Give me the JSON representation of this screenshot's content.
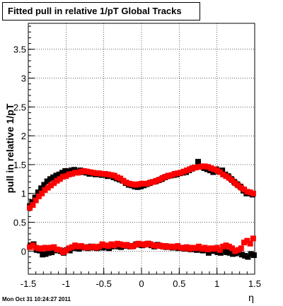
{
  "title": "Fitted pull in relative 1/pT  Global Tracks",
  "footer_date": "Mon Oct 31 10:24:27 2011",
  "chart_data": {
    "type": "scatter",
    "title": "Fitted pull in relative 1/pT  Global Tracks",
    "xlabel": "η",
    "ylabel": "pull in relative 1/pT",
    "xlim": [
      -1.5,
      1.5
    ],
    "ylim": [
      -0.4,
      3.95
    ],
    "x_ticks": [
      "-1.5",
      "-1",
      "-0.5",
      "0",
      "0.5",
      "1",
      "1.5"
    ],
    "x_tick_values": [
      -1.5,
      -1,
      -0.5,
      0,
      0.5,
      1,
      1.5
    ],
    "y_ticks": [
      "0",
      "0.5",
      "1",
      "1.5",
      "2",
      "2.5",
      "3",
      "3.5"
    ],
    "y_tick_values": [
      0,
      0.5,
      1,
      1.5,
      2,
      2.5,
      3,
      3.5
    ],
    "grid": true,
    "series": [
      {
        "color": "#000000",
        "marker": "square",
        "points": [
          [
            -1.48,
            0.78
          ],
          [
            -1.45,
            0.85
          ],
          [
            -1.41,
            0.93
          ],
          [
            -1.37,
            1.02
          ],
          [
            -1.33,
            1.09
          ],
          [
            -1.29,
            1.15
          ],
          [
            -1.25,
            1.21
          ],
          [
            -1.21,
            1.25
          ],
          [
            -1.17,
            1.28
          ],
          [
            -1.13,
            1.31
          ],
          [
            -1.09,
            1.33
          ],
          [
            -1.05,
            1.36
          ],
          [
            -1.01,
            1.39
          ],
          [
            -0.97,
            1.38
          ],
          [
            -0.93,
            1.4
          ],
          [
            -0.89,
            1.41
          ],
          [
            -0.85,
            1.38
          ],
          [
            -0.81,
            1.4
          ],
          [
            -0.77,
            1.37
          ],
          [
            -0.73,
            1.36
          ],
          [
            -0.69,
            1.34
          ],
          [
            -0.65,
            1.35
          ],
          [
            -0.61,
            1.33
          ],
          [
            -0.57,
            1.34
          ],
          [
            -0.53,
            1.32
          ],
          [
            -0.49,
            1.33
          ],
          [
            -0.45,
            1.3
          ],
          [
            -0.41,
            1.31
          ],
          [
            -0.37,
            1.28
          ],
          [
            -0.33,
            1.26
          ],
          [
            -0.29,
            1.24
          ],
          [
            -0.25,
            1.22
          ],
          [
            -0.21,
            1.18
          ],
          [
            -0.17,
            1.15
          ],
          [
            -0.13,
            1.14
          ],
          [
            -0.09,
            1.12
          ],
          [
            -0.05,
            1.11
          ],
          [
            -0.01,
            1.12
          ],
          [
            0.03,
            1.14
          ],
          [
            0.07,
            1.16
          ],
          [
            0.11,
            1.18
          ],
          [
            0.15,
            1.2
          ],
          [
            0.19,
            1.21
          ],
          [
            0.23,
            1.23
          ],
          [
            0.27,
            1.25
          ],
          [
            0.31,
            1.28
          ],
          [
            0.35,
            1.3
          ],
          [
            0.39,
            1.31
          ],
          [
            0.43,
            1.32
          ],
          [
            0.47,
            1.33
          ],
          [
            0.51,
            1.35
          ],
          [
            0.55,
            1.36
          ],
          [
            0.59,
            1.37
          ],
          [
            0.63,
            1.4
          ],
          [
            0.67,
            1.43
          ],
          [
            0.71,
            1.45
          ],
          [
            0.75,
            1.55
          ],
          [
            0.79,
            1.47
          ],
          [
            0.83,
            1.44
          ],
          [
            0.87,
            1.42
          ],
          [
            0.91,
            1.4
          ],
          [
            0.95,
            1.37
          ],
          [
            0.99,
            1.42
          ],
          [
            1.03,
            1.38
          ],
          [
            1.07,
            1.4
          ],
          [
            1.11,
            1.33
          ],
          [
            1.15,
            1.3
          ],
          [
            1.19,
            1.25
          ],
          [
            1.23,
            1.2
          ],
          [
            1.27,
            1.16
          ],
          [
            1.31,
            1.12
          ],
          [
            1.35,
            1.05
          ],
          [
            1.39,
            1.0
          ],
          [
            1.43,
            1.0
          ],
          [
            1.47,
            0.98
          ],
          [
            -1.47,
            0.1
          ],
          [
            -1.43,
            0.12
          ],
          [
            -1.39,
            0.02
          ],
          [
            -1.35,
            0.01
          ],
          [
            -1.31,
            -0.06
          ],
          [
            -1.27,
            -0.05
          ],
          [
            -1.23,
            -0.03
          ],
          [
            -1.19,
            -0.02
          ],
          [
            -1.15,
            0.01
          ],
          [
            -1.11,
            0.02
          ],
          [
            -1.07,
            0.0
          ],
          [
            -1.03,
            -0.03
          ],
          [
            -0.99,
            0.02
          ],
          [
            -0.95,
            0.01
          ],
          [
            -0.91,
            0.05
          ],
          [
            -0.87,
            0.06
          ],
          [
            -0.83,
            0.04
          ],
          [
            -0.79,
            0.06
          ],
          [
            -0.75,
            0.07
          ],
          [
            -0.71,
            0.05
          ],
          [
            -0.67,
            0.08
          ],
          [
            -0.63,
            0.06
          ],
          [
            -0.59,
            0.05
          ],
          [
            -0.55,
            0.07
          ],
          [
            -0.51,
            0.06
          ],
          [
            -0.47,
            0.08
          ],
          [
            -0.43,
            0.05
          ],
          [
            -0.39,
            0.08
          ],
          [
            -0.35,
            0.1
          ],
          [
            -0.31,
            0.08
          ],
          [
            -0.27,
            0.07
          ],
          [
            -0.23,
            0.09
          ],
          [
            -0.19,
            0.1
          ],
          [
            -0.15,
            0.08
          ],
          [
            -0.11,
            0.09
          ],
          [
            -0.07,
            0.12
          ],
          [
            -0.03,
            0.11
          ],
          [
            0.01,
            0.1
          ],
          [
            0.05,
            0.12
          ],
          [
            0.09,
            0.13
          ],
          [
            0.13,
            0.1
          ],
          [
            0.17,
            0.08
          ],
          [
            0.21,
            0.11
          ],
          [
            0.25,
            0.09
          ],
          [
            0.29,
            0.08
          ],
          [
            0.33,
            0.07
          ],
          [
            0.37,
            0.08
          ],
          [
            0.41,
            0.06
          ],
          [
            0.45,
            0.07
          ],
          [
            0.49,
            0.05
          ],
          [
            0.53,
            0.06
          ],
          [
            0.57,
            0.04
          ],
          [
            0.61,
            0.05
          ],
          [
            0.65,
            0.03
          ],
          [
            0.69,
            0.04
          ],
          [
            0.73,
            0.02
          ],
          [
            0.77,
            0.03
          ],
          [
            0.81,
            0.01
          ],
          [
            0.85,
            0.02
          ],
          [
            0.89,
            -0.03
          ],
          [
            0.93,
            0.01
          ],
          [
            0.97,
            0.0
          ],
          [
            1.01,
            -0.02
          ],
          [
            1.05,
            -0.03
          ],
          [
            1.09,
            0.0
          ],
          [
            1.13,
            -0.02
          ],
          [
            1.17,
            -0.03
          ],
          [
            1.21,
            -0.05
          ],
          [
            1.25,
            -0.04
          ],
          [
            1.29,
            -0.02
          ],
          [
            1.33,
            -0.06
          ],
          [
            1.37,
            -0.08
          ],
          [
            1.41,
            -0.1
          ],
          [
            1.45,
            -0.05
          ],
          [
            1.49,
            -0.07
          ]
        ]
      },
      {
        "color": "#ff0000",
        "marker": "square",
        "points": [
          [
            -1.48,
            0.75
          ],
          [
            -1.44,
            0.8
          ],
          [
            -1.4,
            0.88
          ],
          [
            -1.36,
            0.95
          ],
          [
            -1.32,
            1.0
          ],
          [
            -1.28,
            1.06
          ],
          [
            -1.24,
            1.1
          ],
          [
            -1.2,
            1.14
          ],
          [
            -1.16,
            1.18
          ],
          [
            -1.12,
            1.22
          ],
          [
            -1.08,
            1.25
          ],
          [
            -1.04,
            1.29
          ],
          [
            -1.0,
            1.3
          ],
          [
            -0.96,
            1.33
          ],
          [
            -0.92,
            1.34
          ],
          [
            -0.88,
            1.36
          ],
          [
            -0.84,
            1.36
          ],
          [
            -0.8,
            1.38
          ],
          [
            -0.76,
            1.39
          ],
          [
            -0.72,
            1.38
          ],
          [
            -0.68,
            1.37
          ],
          [
            -0.64,
            1.36
          ],
          [
            -0.6,
            1.35
          ],
          [
            -0.56,
            1.35
          ],
          [
            -0.52,
            1.34
          ],
          [
            -0.48,
            1.34
          ],
          [
            -0.44,
            1.33
          ],
          [
            -0.4,
            1.32
          ],
          [
            -0.36,
            1.31
          ],
          [
            -0.32,
            1.28
          ],
          [
            -0.28,
            1.26
          ],
          [
            -0.24,
            1.22
          ],
          [
            -0.2,
            1.19
          ],
          [
            -0.16,
            1.17
          ],
          [
            -0.12,
            1.16
          ],
          [
            -0.08,
            1.15
          ],
          [
            -0.04,
            1.16
          ],
          [
            0.0,
            1.17
          ],
          [
            0.04,
            1.17
          ],
          [
            0.08,
            1.17
          ],
          [
            0.12,
            1.19
          ],
          [
            0.16,
            1.2
          ],
          [
            0.2,
            1.22
          ],
          [
            0.24,
            1.24
          ],
          [
            0.28,
            1.27
          ],
          [
            0.32,
            1.29
          ],
          [
            0.36,
            1.31
          ],
          [
            0.4,
            1.32
          ],
          [
            0.44,
            1.34
          ],
          [
            0.48,
            1.35
          ],
          [
            0.52,
            1.36
          ],
          [
            0.56,
            1.38
          ],
          [
            0.6,
            1.4
          ],
          [
            0.64,
            1.42
          ],
          [
            0.68,
            1.44
          ],
          [
            0.72,
            1.45
          ],
          [
            0.76,
            1.46
          ],
          [
            0.8,
            1.47
          ],
          [
            0.84,
            1.47
          ],
          [
            0.88,
            1.46
          ],
          [
            0.92,
            1.44
          ],
          [
            0.96,
            1.42
          ],
          [
            1.0,
            1.4
          ],
          [
            1.04,
            1.37
          ],
          [
            1.08,
            1.33
          ],
          [
            1.12,
            1.3
          ],
          [
            1.16,
            1.27
          ],
          [
            1.2,
            1.23
          ],
          [
            1.24,
            1.18
          ],
          [
            1.28,
            1.14
          ],
          [
            1.32,
            1.1
          ],
          [
            1.36,
            1.07
          ],
          [
            1.4,
            1.03
          ],
          [
            1.44,
            1.02
          ],
          [
            1.48,
            1.0
          ],
          [
            -1.48,
            0.07
          ],
          [
            -1.44,
            0.1
          ],
          [
            -1.4,
            0.06
          ],
          [
            -1.36,
            0.05
          ],
          [
            -1.32,
            0.04
          ],
          [
            -1.28,
            0.06
          ],
          [
            -1.24,
            0.05
          ],
          [
            -1.2,
            0.06
          ],
          [
            -1.16,
            0.07
          ],
          [
            -1.12,
            0.03
          ],
          [
            -1.08,
            0.02
          ],
          [
            -1.04,
            -0.02
          ],
          [
            -1.0,
            0.01
          ],
          [
            -0.96,
            0.05
          ],
          [
            -0.92,
            0.07
          ],
          [
            -0.88,
            0.1
          ],
          [
            -0.84,
            0.08
          ],
          [
            -0.8,
            0.09
          ],
          [
            -0.76,
            0.07
          ],
          [
            -0.72,
            0.06
          ],
          [
            -0.68,
            0.07
          ],
          [
            -0.64,
            0.08
          ],
          [
            -0.6,
            0.06
          ],
          [
            -0.56,
            0.08
          ],
          [
            -0.52,
            0.12
          ],
          [
            -0.48,
            0.1
          ],
          [
            -0.44,
            0.09
          ],
          [
            -0.4,
            0.12
          ],
          [
            -0.36,
            0.1
          ],
          [
            -0.32,
            0.13
          ],
          [
            -0.28,
            0.12
          ],
          [
            -0.24,
            0.1
          ],
          [
            -0.2,
            0.11
          ],
          [
            -0.16,
            0.09
          ],
          [
            -0.12,
            0.08
          ],
          [
            -0.08,
            0.11
          ],
          [
            -0.04,
            0.13
          ],
          [
            0.0,
            0.12
          ],
          [
            0.04,
            0.11
          ],
          [
            0.08,
            0.13
          ],
          [
            0.12,
            0.12
          ],
          [
            0.16,
            0.1
          ],
          [
            0.2,
            0.09
          ],
          [
            0.24,
            0.1
          ],
          [
            0.28,
            0.08
          ],
          [
            0.32,
            0.09
          ],
          [
            0.36,
            0.07
          ],
          [
            0.4,
            0.08
          ],
          [
            0.44,
            0.07
          ],
          [
            0.48,
            0.09
          ],
          [
            0.52,
            0.06
          ],
          [
            0.56,
            0.05
          ],
          [
            0.6,
            0.07
          ],
          [
            0.64,
            0.04
          ],
          [
            0.68,
            0.06
          ],
          [
            0.72,
            0.05
          ],
          [
            0.76,
            0.08
          ],
          [
            0.8,
            0.04
          ],
          [
            0.84,
            0.06
          ],
          [
            0.88,
            0.03
          ],
          [
            0.92,
            0.05
          ],
          [
            0.96,
            0.04
          ],
          [
            1.0,
            0.06
          ],
          [
            1.04,
            0.02
          ],
          [
            1.08,
            0.08
          ],
          [
            1.12,
            0.1
          ],
          [
            1.16,
            0.08
          ],
          [
            1.2,
            0.05
          ],
          [
            1.24,
            0.0
          ],
          [
            1.28,
            0.02
          ],
          [
            1.32,
            0.05
          ],
          [
            1.36,
            0.15
          ],
          [
            1.4,
            0.18
          ],
          [
            1.44,
            0.13
          ],
          [
            1.48,
            0.22
          ]
        ]
      }
    ]
  }
}
